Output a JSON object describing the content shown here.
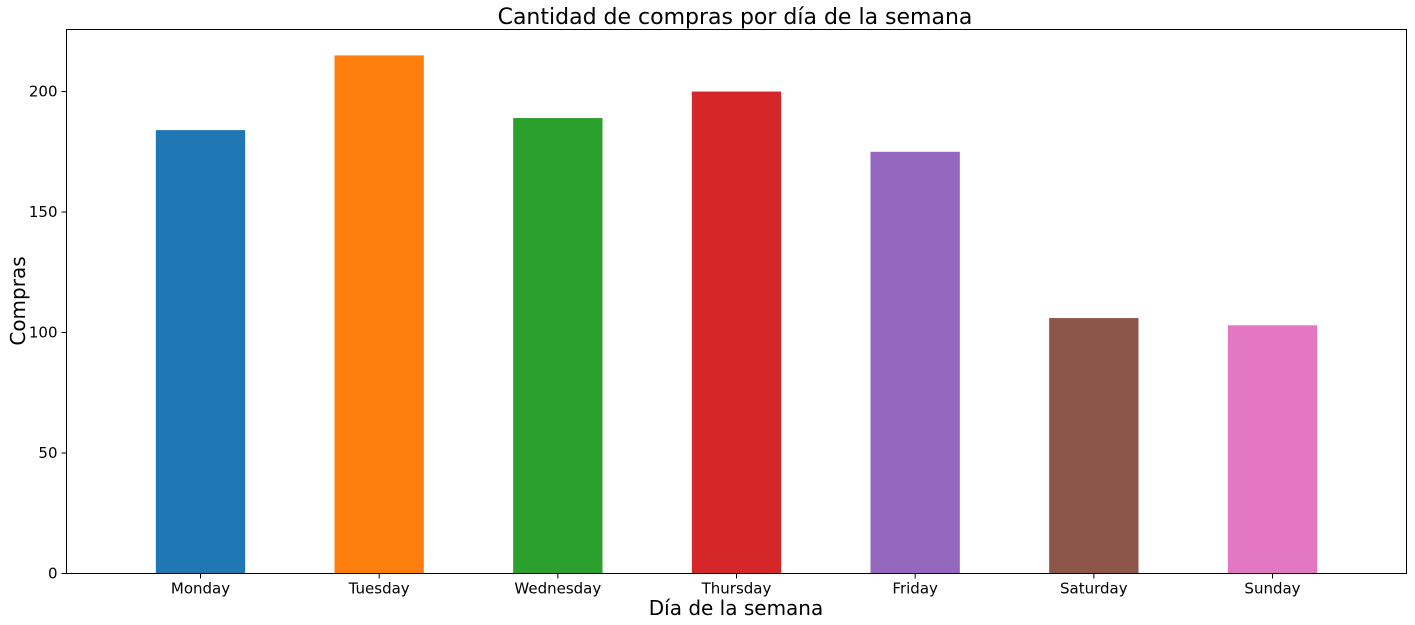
{
  "chart_data": {
    "type": "bar",
    "title": "Cantidad de compras por día de la semana",
    "xlabel": "Día de la semana",
    "ylabel": "Compras",
    "categories": [
      "Monday",
      "Tuesday",
      "Wednesday",
      "Thursday",
      "Friday",
      "Saturday",
      "Sunday"
    ],
    "values": [
      184,
      215,
      189,
      200,
      175,
      106,
      103
    ],
    "colors": [
      "#1f77b4",
      "#ff7f0e",
      "#2ca02c",
      "#d62728",
      "#9467bd",
      "#8c564b",
      "#e377c2"
    ],
    "ylim": [
      0,
      225.75
    ],
    "yticks": [
      0,
      50,
      100,
      150,
      200
    ],
    "grid": false,
    "legend": "none"
  }
}
